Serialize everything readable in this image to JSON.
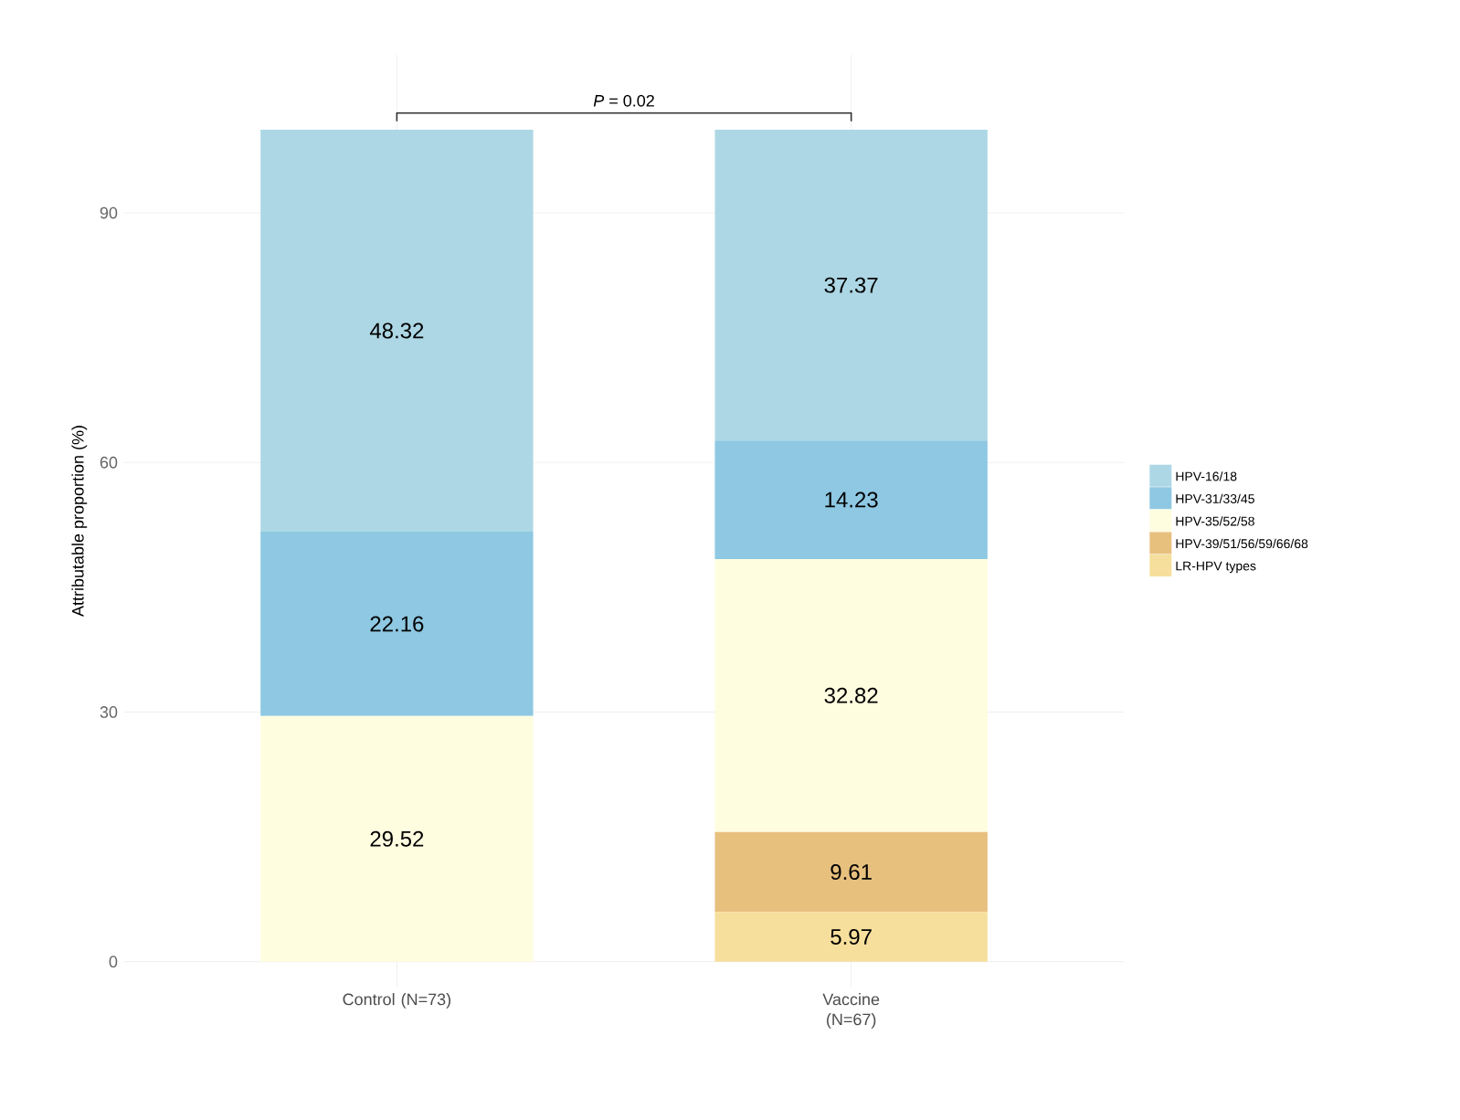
{
  "chart_data": {
    "type": "bar",
    "stacked": true,
    "categories": [
      "Control (N=73)",
      "Vaccine (N=67)"
    ],
    "ylabel": "Attributable proportion (%)",
    "ylim": [
      -3,
      109
    ],
    "yticks": [
      0,
      30,
      60,
      90
    ],
    "grid": true,
    "legend": "right",
    "data_labels": true,
    "annotations": [
      "*P* = 0.02"
    ],
    "series": [
      {
        "name": "LR-HPV types",
        "color": "#f6df9c",
        "values": [
          null,
          5.97
        ]
      },
      {
        "name": "HPV-39/51/56/59/66/68",
        "color": "#e8c07e",
        "values": [
          null,
          9.61
        ]
      },
      {
        "name": "HPV-35/52/58",
        "color": "#fffde0",
        "values": [
          29.52,
          32.82
        ]
      },
      {
        "name": "HPV-31/33/45",
        "color": "#8ec8e2",
        "values": [
          22.16,
          14.23
        ]
      },
      {
        "name": "HPV-16/18",
        "color": "#add7e5",
        "values": [
          48.32,
          37.37
        ]
      }
    ]
  }
}
